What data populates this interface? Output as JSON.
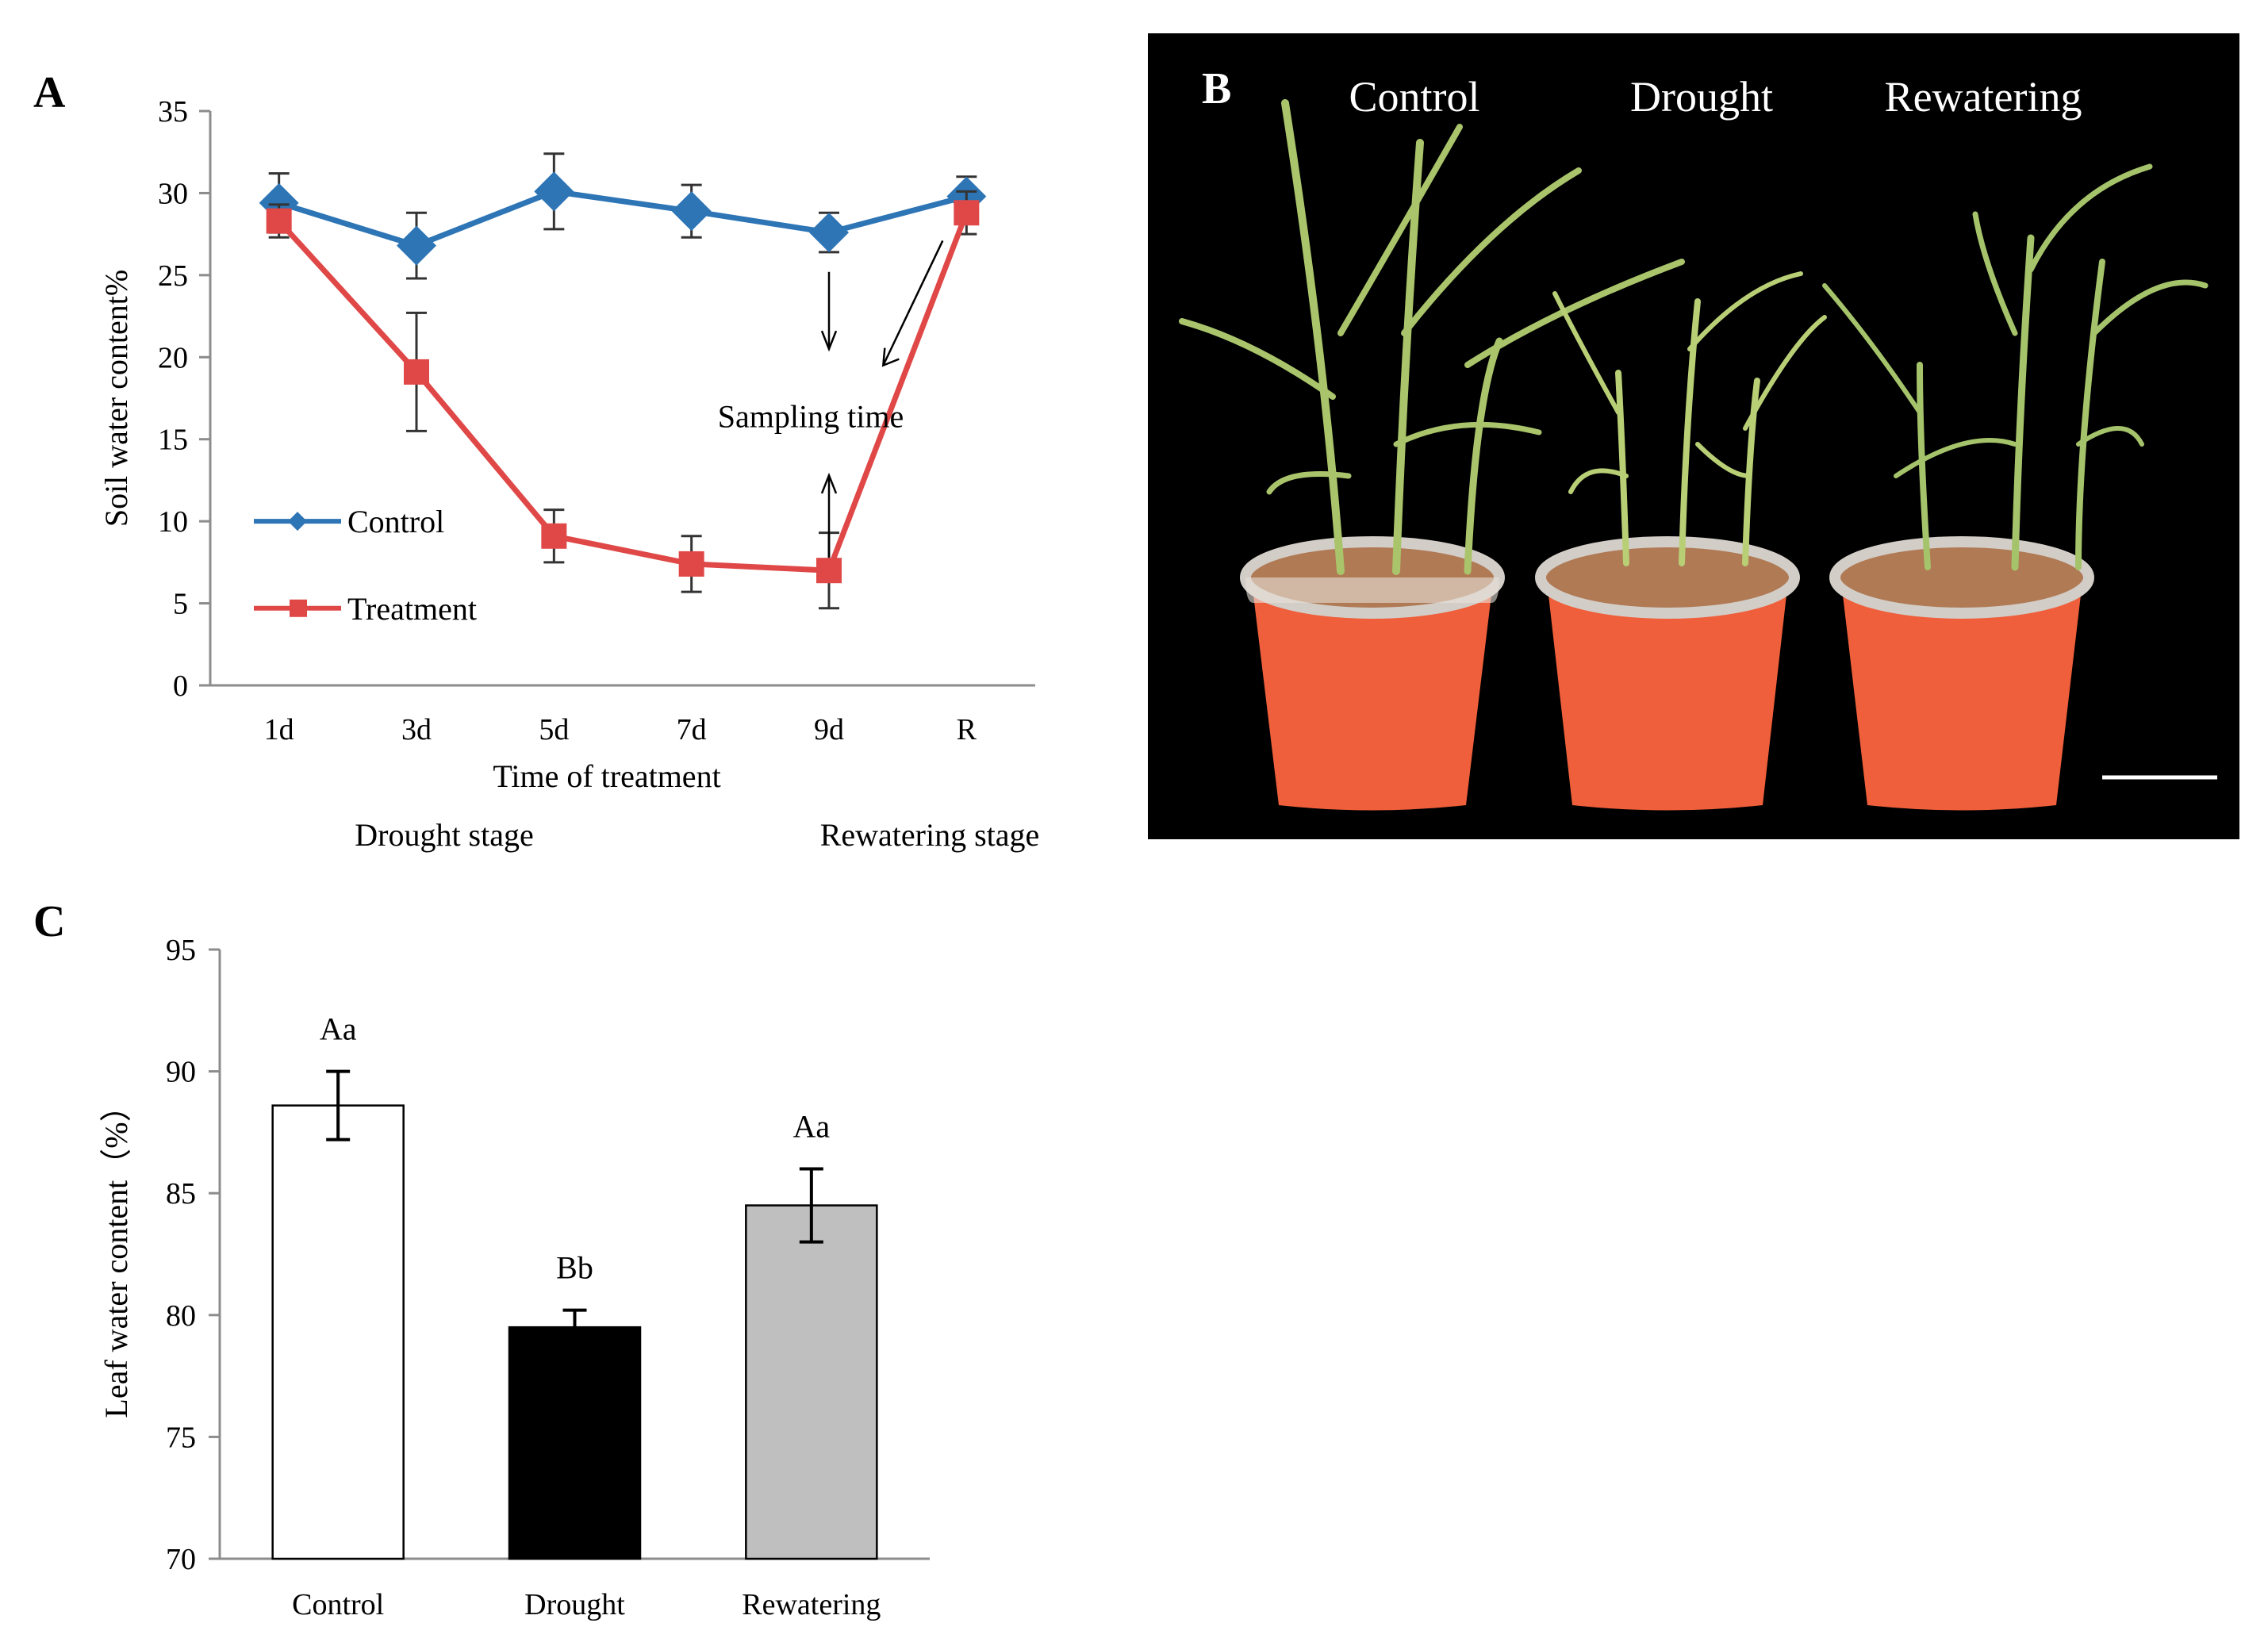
{
  "panels": {
    "a": "A",
    "b": "B",
    "c": "C"
  },
  "colors": {
    "control": "#2E75B6",
    "treatment": "#E04848",
    "axis": "#8c8c8c",
    "bar_rewatering": "#bfbfbf",
    "bar_drought": "#000000",
    "bar_control": "#ffffff"
  },
  "chart_data": [
    {
      "id": "A",
      "type": "line",
      "title": "",
      "ylabel": "Soil water content%",
      "xlabel": "Time of treatment",
      "categories": [
        "1d",
        "3d",
        "5d",
        "7d",
        "9d",
        "R"
      ],
      "ylim": [
        0,
        35
      ],
      "yticks": [
        0,
        5,
        10,
        15,
        20,
        25,
        30,
        35
      ],
      "series": [
        {
          "name": "Control",
          "values": [
            29.4,
            26.8,
            30.1,
            28.9,
            27.6,
            29.8
          ],
          "errors": [
            1.8,
            2.0,
            2.3,
            1.6,
            1.2,
            1.2
          ],
          "marker": "diamond"
        },
        {
          "name": "Treatment",
          "values": [
            28.3,
            19.1,
            9.1,
            7.4,
            7.0,
            28.8
          ],
          "errors": [
            1.0,
            3.6,
            1.6,
            1.7,
            2.3,
            1.3
          ],
          "marker": "square"
        }
      ],
      "stages": {
        "drought": "Drought stage",
        "rewatering": "Rewatering stage"
      },
      "annotation": "Sampling time",
      "legend_placement": "lower-left"
    },
    {
      "id": "C",
      "type": "bar",
      "title": "",
      "ylabel": "Leaf  water content（%）",
      "xlabel": "",
      "categories": [
        "Control",
        "Drought",
        "Rewatering"
      ],
      "values": [
        88.6,
        79.5,
        84.5
      ],
      "errors": [
        1.4,
        0.7,
        1.5
      ],
      "significance": [
        "Aa",
        "Bb",
        "Aa"
      ],
      "ylim": [
        70,
        95
      ],
      "yticks": [
        70,
        75,
        80,
        85,
        90,
        95
      ]
    }
  ],
  "photo": {
    "labels": [
      "Control",
      "Drought",
      "Rewatering"
    ],
    "description_icon": "plant-pots-photo"
  }
}
